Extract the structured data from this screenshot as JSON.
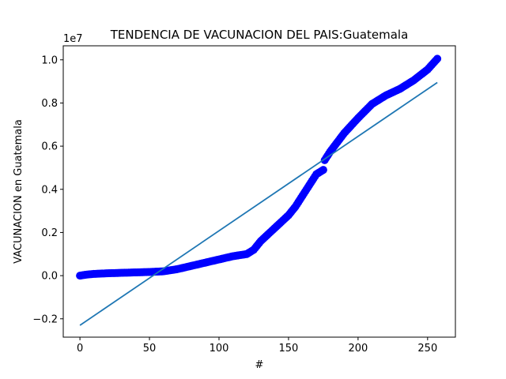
{
  "chart_data": {
    "type": "scatter",
    "title": "TENDENCIA DE VACUNACION  DEL PAIS:Guatemala",
    "xlabel": "#",
    "ylabel": "VACUNACION en Guatemala",
    "offset_text": "1e7",
    "xlim": [
      -12,
      270
    ],
    "ylim": [
      -2850000,
      10650000
    ],
    "x_ticks": [
      0,
      50,
      100,
      150,
      200,
      250
    ],
    "y_ticks": [
      -2000000,
      0,
      2000000,
      4000000,
      6000000,
      8000000,
      10000000
    ],
    "y_tick_labels": [
      "−0.2",
      "0.0",
      "0.2",
      "0.4",
      "0.6",
      "0.8",
      "1.0"
    ],
    "grid": false,
    "legend": "none",
    "series": [
      {
        "kind": "scatter",
        "color": "#0000ff",
        "x": [
          0,
          5,
          10,
          20,
          30,
          40,
          50,
          60,
          70,
          80,
          90,
          100,
          110,
          120,
          125,
          130,
          140,
          150,
          155,
          160,
          165,
          170,
          175,
          176,
          180,
          190,
          200,
          210,
          220,
          230,
          240,
          250,
          257
        ],
        "y": [
          0,
          50000,
          80000,
          110000,
          130000,
          150000,
          170000,
          200000,
          300000,
          450000,
          600000,
          750000,
          900000,
          1000000,
          1200000,
          1600000,
          2200000,
          2800000,
          3200000,
          3700000,
          4200000,
          4700000,
          4900000,
          5350000,
          5750000,
          6600000,
          7300000,
          7950000,
          8350000,
          8650000,
          9050000,
          9550000,
          10050000
        ]
      },
      {
        "kind": "line",
        "color": "#1f77b4",
        "x": [
          0,
          257
        ],
        "y": [
          -2300000,
          8950000
        ]
      }
    ]
  }
}
